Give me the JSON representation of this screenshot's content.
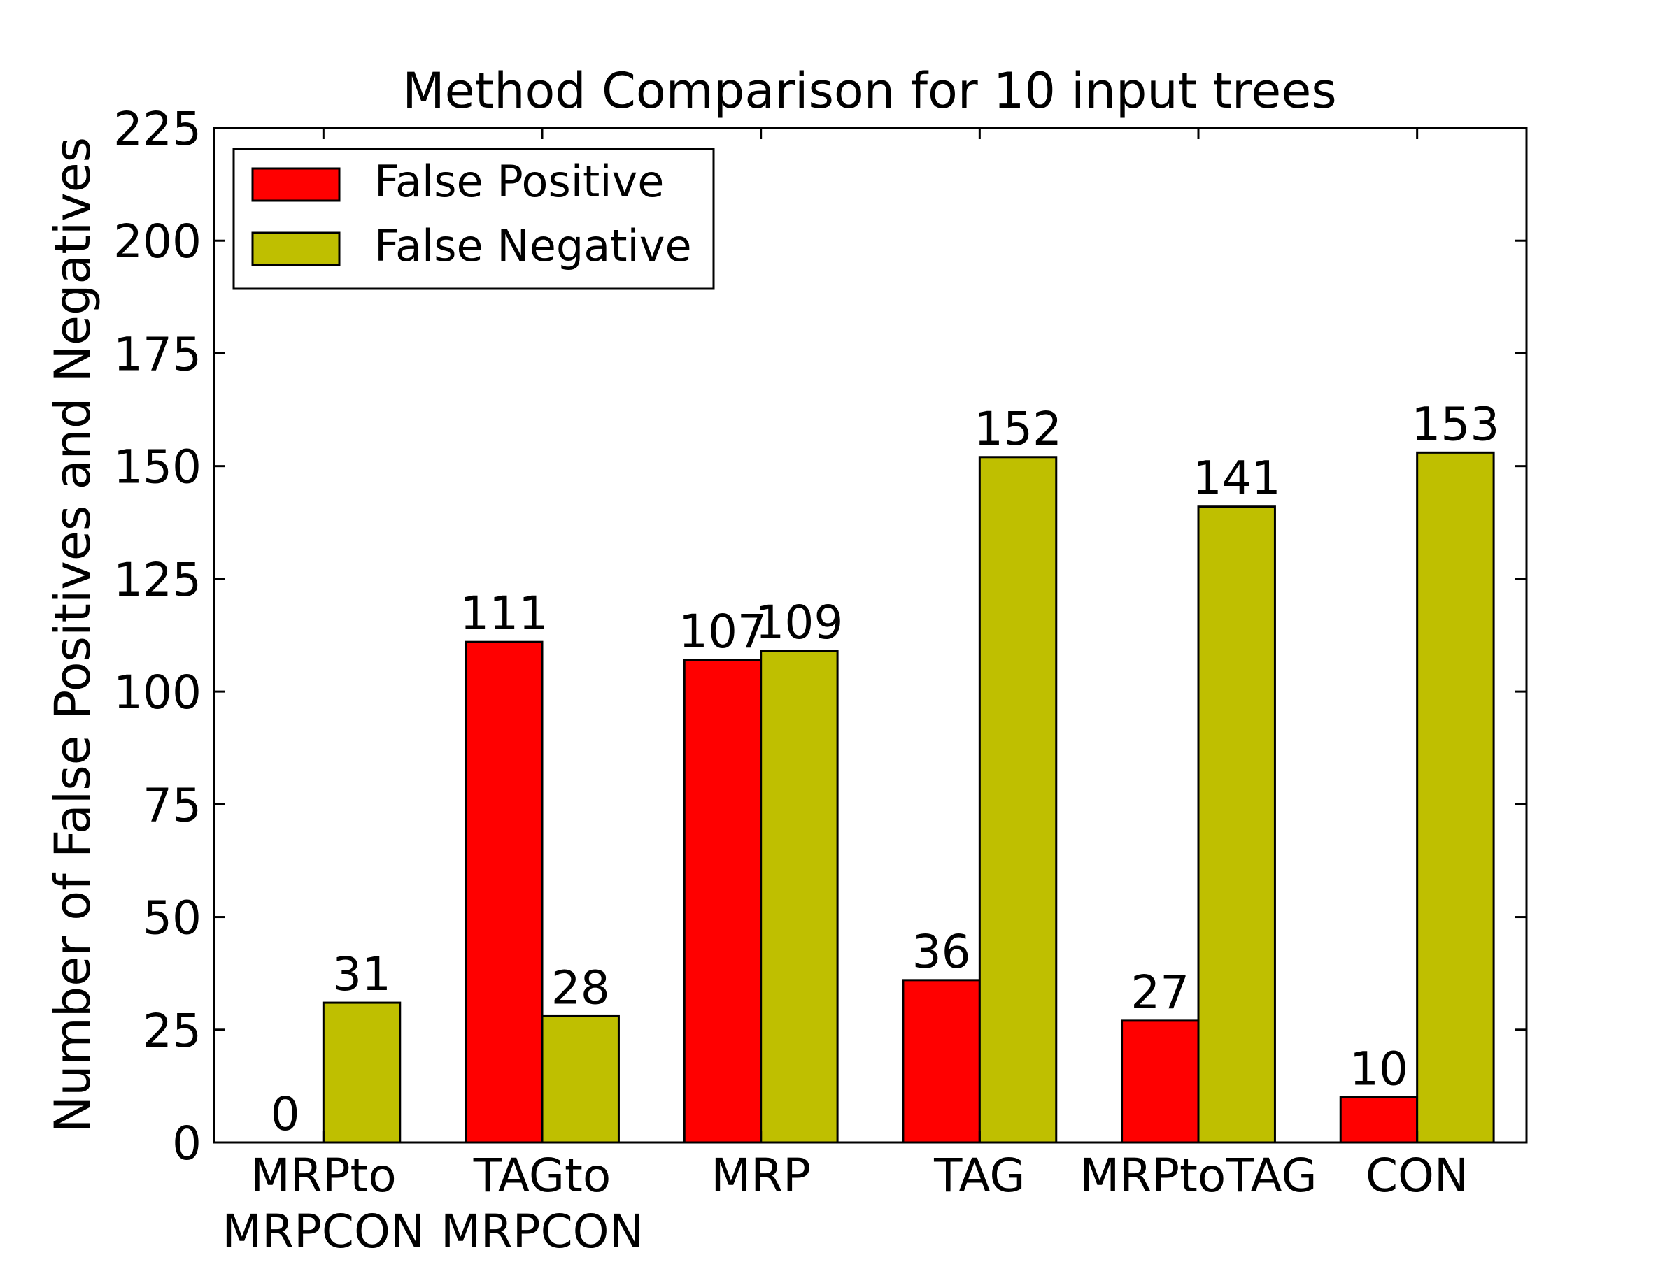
{
  "chart_data": {
    "type": "bar",
    "title": "Method Comparison for 10 input trees",
    "xlabel": "",
    "ylabel": "Number of False Positives and Negatives",
    "ylim": [
      0,
      225
    ],
    "yticks": [
      0,
      25,
      50,
      75,
      100,
      125,
      150,
      175,
      200,
      225
    ],
    "categories": [
      [
        "MRPto",
        "MRPCON"
      ],
      [
        "TAGto",
        "MRPCON"
      ],
      [
        "MRP"
      ],
      [
        "TAG"
      ],
      [
        "MRPtoTAG"
      ],
      [
        "CON"
      ]
    ],
    "series": [
      {
        "name": "False Positive",
        "color": "#ff0000",
        "values": [
          0,
          111,
          107,
          36,
          27,
          10
        ]
      },
      {
        "name": "False Negative",
        "color": "#bfbf00",
        "values": [
          31,
          28,
          109,
          152,
          141,
          153
        ]
      }
    ],
    "data_labels": true,
    "legend": {
      "position": "top-left"
    },
    "grid": false
  }
}
